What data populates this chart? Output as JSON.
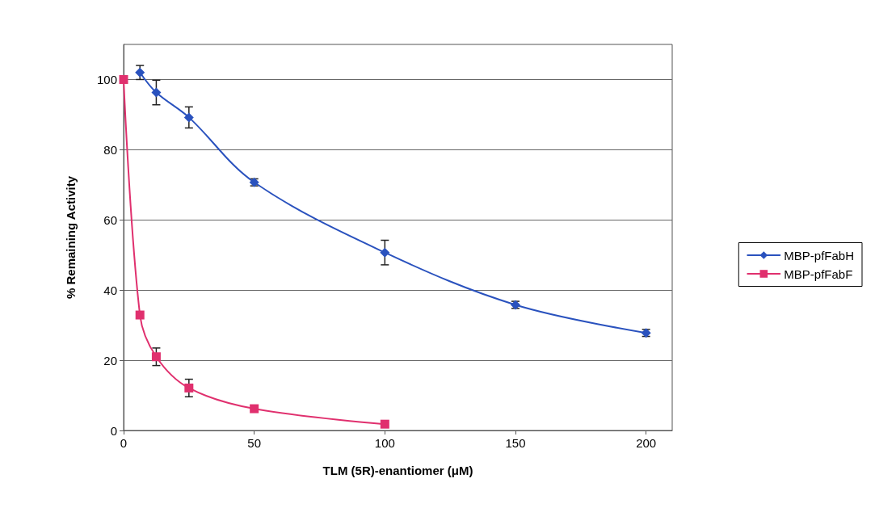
{
  "chart_data": {
    "type": "line",
    "xlabel": "TLM (5R)-enantiomer (μM)",
    "ylabel": "% Remaining Activity",
    "xlim": [
      0,
      210
    ],
    "xticks": [
      0,
      50,
      100,
      150,
      200
    ],
    "ylim": [
      0,
      110
    ],
    "yticks": [
      0,
      20,
      40,
      60,
      80,
      100
    ],
    "grid": "y",
    "legend": "right",
    "line_style": "solid",
    "series": [
      {
        "name": "MBP-pfFabH",
        "color": "#2a52be",
        "marker": "diamond",
        "x": [
          6.25,
          12.5,
          25,
          50,
          100,
          150,
          200
        ],
        "values": [
          102,
          96.3,
          89.2,
          70.7,
          50.7,
          35.8,
          27.8
        ],
        "errors": [
          2,
          3.5,
          3,
          1,
          3.5,
          1,
          1
        ]
      },
      {
        "name": "MBP-pfFabF",
        "color": "#e0306e",
        "marker": "square",
        "x": [
          0,
          6.25,
          12.5,
          25,
          50,
          100
        ],
        "values": [
          100,
          32.9,
          21,
          12.1,
          6.2,
          1.8
        ],
        "errors": [
          null,
          null,
          2.5,
          2.5,
          null,
          null
        ]
      }
    ]
  }
}
